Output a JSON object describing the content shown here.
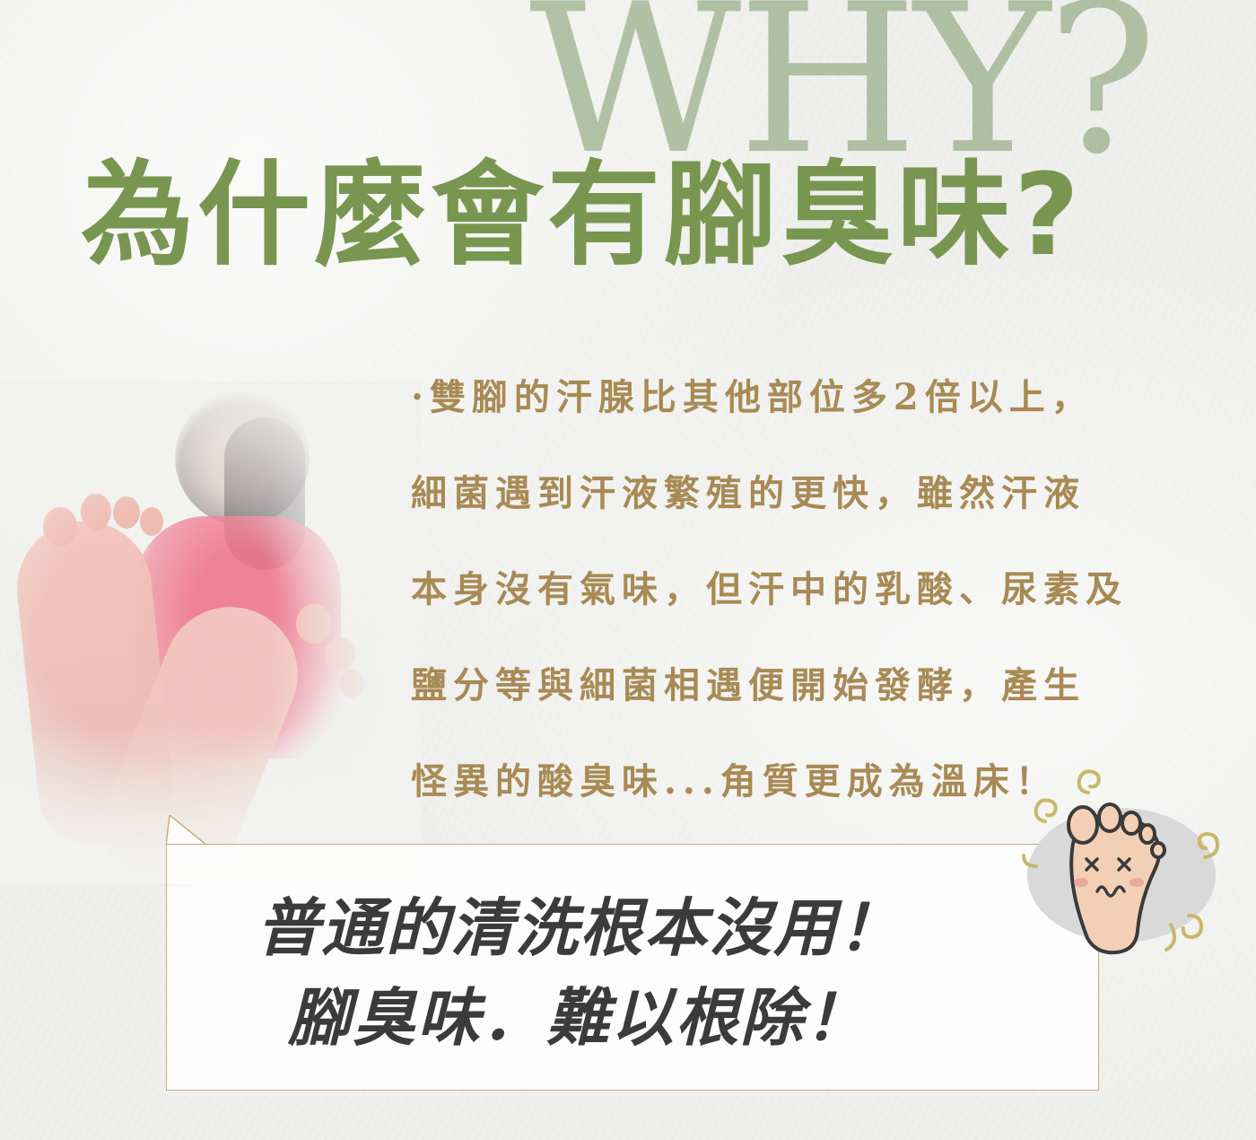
{
  "background": {
    "paper_color": "#efefed"
  },
  "watermark": {
    "text": "WHY?",
    "color": "#7b9a67"
  },
  "headline": {
    "text": "為什麼會有腳臭味?",
    "color": "#78964f"
  },
  "body": {
    "color": "#a88a54",
    "lines": [
      "·雙腳的汗腺比其他部位多2倍以上，",
      "細菌遇到汗液繁殖的更快，雖然汗液",
      "本身沒有氣味，但汗中的乳酸、尿素及",
      "鹽分等與細菌相遇便開始發酵，產生",
      "怪異的酸臭味...角質更成為溫床！"
    ]
  },
  "callout": {
    "line1": "普通的清洗根本沒用！",
    "line2": "腳臭味．難以根除！",
    "border_color": "#c8ad77",
    "text_color": "#3b3b3b"
  },
  "icons": {
    "foot_character": "smelly-foot-icon",
    "photo": "feet-photo"
  }
}
